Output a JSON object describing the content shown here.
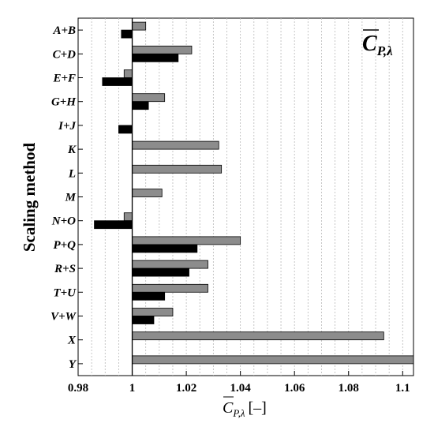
{
  "chart_data": {
    "type": "bar",
    "orientation": "horizontal",
    "categories": [
      "A+B",
      "C+D",
      "E+F",
      "G+H",
      "I+J",
      "K",
      "L",
      "M",
      "N+O",
      "P+Q",
      "R+S",
      "T+U",
      "V+W",
      "X",
      "Y"
    ],
    "series": [
      {
        "color": "#8c8c8c",
        "values": [
          1.005,
          1.022,
          0.997,
          1.012,
          null,
          1.032,
          1.033,
          1.011,
          0.997,
          1.04,
          1.028,
          1.028,
          1.015,
          1.093,
          1.104
        ]
      },
      {
        "color": "#000000",
        "values": [
          0.996,
          1.017,
          0.989,
          1.006,
          0.995,
          null,
          null,
          null,
          0.986,
          1.024,
          1.021,
          1.012,
          1.008,
          null,
          null
        ]
      }
    ],
    "baseline": 1.0,
    "xlim": [
      0.98,
      1.104
    ],
    "xticks": [
      "0.98",
      "1",
      "1.02",
      "1.04",
      "1.06",
      "1.08",
      "1.1"
    ],
    "xtick_values": [
      0.98,
      1.0,
      1.02,
      1.04,
      1.06,
      1.08,
      1.1
    ],
    "xlabel": {
      "main": "C",
      "sub": "P,λ",
      "unit": "[–]"
    },
    "ylabel": "Scaling method",
    "legend": {
      "main": "C",
      "sub": "P,λ",
      "position": "top-right"
    },
    "grid": "vertical dashed"
  }
}
